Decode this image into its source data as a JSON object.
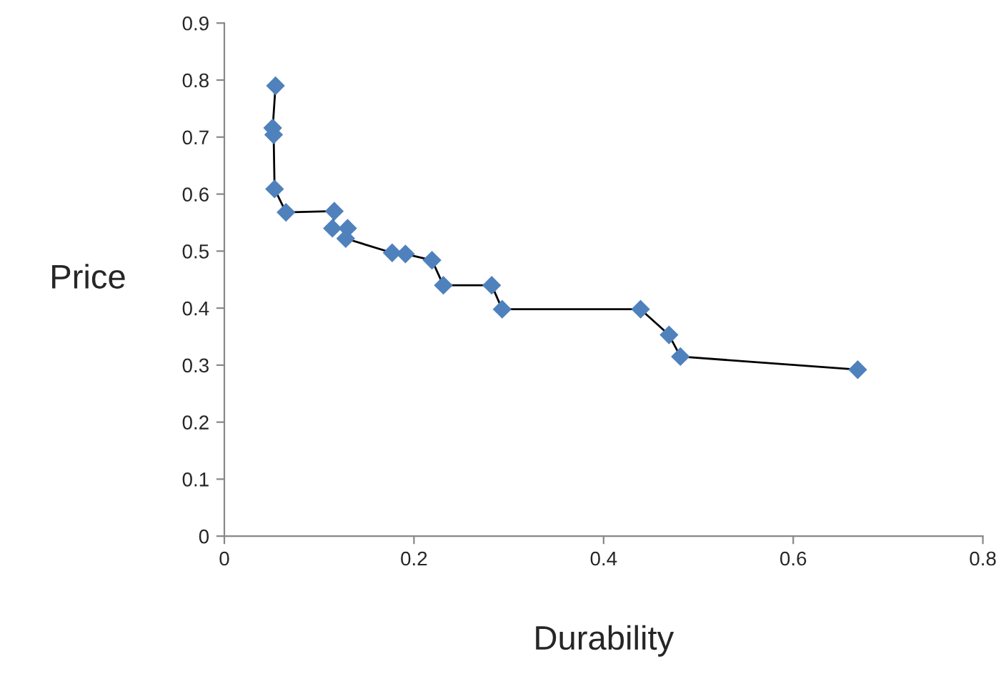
{
  "chart_data": {
    "type": "line",
    "xlabel": "Durability",
    "ylabel": "Price",
    "x": [
      0.054,
      0.051,
      0.052,
      0.053,
      0.065,
      0.116,
      0.114,
      0.13,
      0.128,
      0.177,
      0.191,
      0.219,
      0.231,
      0.282,
      0.293,
      0.439,
      0.469,
      0.481,
      0.668
    ],
    "series": [
      {
        "color": "#4f81bd",
        "values": [
          0.79,
          0.716,
          0.704,
          0.609,
          0.568,
          0.57,
          0.54,
          0.54,
          0.522,
          0.497,
          0.495,
          0.484,
          0.44,
          0.44,
          0.398,
          0.398,
          0.353,
          0.315,
          0.292
        ]
      }
    ],
    "xlim": [
      0,
      0.8
    ],
    "xticks": [
      0,
      0.2,
      0.4,
      0.6,
      0.8
    ],
    "ylim": [
      0,
      0.9
    ],
    "yticks": [
      0,
      0.1,
      0.2,
      0.3,
      0.4,
      0.5,
      0.6,
      0.7,
      0.8,
      0.9
    ],
    "marker": "diamond",
    "grid": false,
    "legend": false
  }
}
